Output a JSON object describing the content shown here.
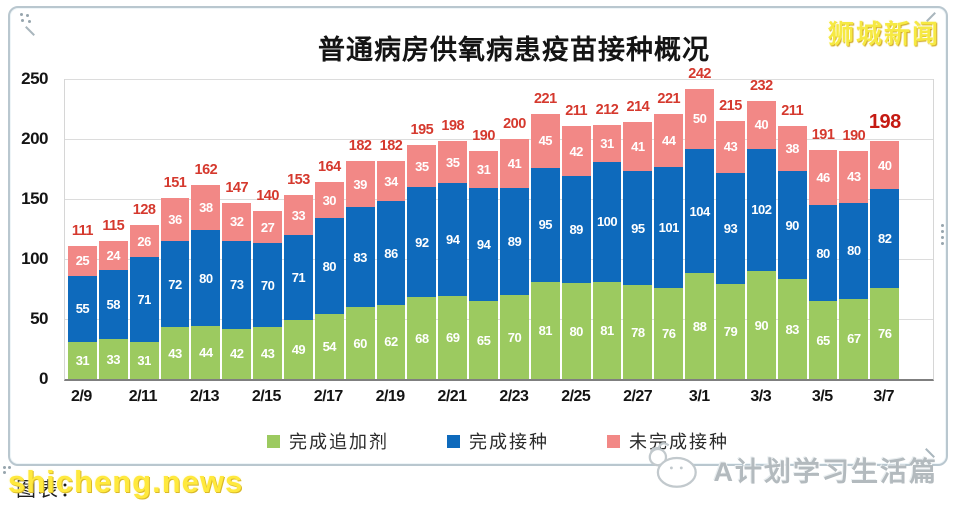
{
  "title": "普通病房供氧病患疫苗接种概况",
  "watermarks": {
    "top_right": "狮城新闻",
    "bottom_left_front": "shicheng.news",
    "bottom_left_back": "图表：",
    "bottom_right": "A计划学习生活篇"
  },
  "colors": {
    "booster_green": "#9cca60",
    "vaccinated_blue": "#0e6abc",
    "unvaccinated_pink": "#f28886",
    "total_red": "#d5392e",
    "total_final_red": "#c51a12",
    "gridline": "#dcdcdc",
    "axis": "#7f7f7f"
  },
  "legend": [
    {
      "label": "完成追加剂",
      "color": "#9cca60"
    },
    {
      "label": "完成接种",
      "color": "#0e6abc"
    },
    {
      "label": "未完成接种",
      "color": "#f28886"
    }
  ],
  "y_axis": {
    "ticks": [
      0,
      50,
      100,
      150,
      200,
      250
    ]
  },
  "chart_data": {
    "type": "bar",
    "stacked": true,
    "title": "普通病房供氧病患疫苗接种概况",
    "categories": [
      "2/9",
      "2/10",
      "2/11",
      "2/12",
      "2/13",
      "2/14",
      "2/15",
      "2/16",
      "2/17",
      "2/18",
      "2/19",
      "2/20",
      "2/21",
      "2/22",
      "2/23",
      "2/24",
      "2/25",
      "2/26",
      "2/27",
      "2/28",
      "3/1",
      "3/2",
      "3/3",
      "3/4",
      "3/5",
      "3/6",
      "3/7"
    ],
    "x_tick_labels": [
      "2/9",
      "2/11",
      "2/13",
      "2/15",
      "2/17",
      "2/19",
      "2/21",
      "2/23",
      "2/25",
      "2/27",
      "3/1",
      "3/3",
      "3/5",
      "3/7"
    ],
    "series": [
      {
        "name": "完成追加剂",
        "key": "booster",
        "color": "#9cca60",
        "values": [
          31,
          33,
          31,
          43,
          44,
          42,
          43,
          49,
          54,
          60,
          62,
          68,
          69,
          65,
          70,
          81,
          80,
          81,
          78,
          76,
          88,
          79,
          90,
          83,
          65,
          67,
          76
        ]
      },
      {
        "name": "完成接种",
        "key": "fully-vaccinated",
        "color": "#0e6abc",
        "values": [
          55,
          58,
          71,
          72,
          80,
          73,
          70,
          71,
          80,
          83,
          86,
          92,
          94,
          94,
          89,
          95,
          89,
          100,
          95,
          101,
          104,
          93,
          102,
          90,
          80,
          80,
          82
        ]
      },
      {
        "name": "未完成接种",
        "key": "not-fully-vaccinated",
        "color": "#f28886",
        "values": [
          25,
          24,
          26,
          36,
          38,
          32,
          27,
          33,
          30,
          39,
          34,
          35,
          35,
          31,
          41,
          45,
          42,
          31,
          41,
          44,
          50,
          43,
          40,
          38,
          46,
          43,
          40
        ]
      }
    ],
    "totals": [
      111,
      115,
      128,
      151,
      162,
      147,
      140,
      153,
      164,
      182,
      182,
      195,
      198,
      190,
      200,
      221,
      211,
      212,
      214,
      221,
      242,
      215,
      232,
      211,
      191,
      190,
      198
    ],
    "ylim": [
      0,
      250
    ],
    "grid": "horizontal",
    "legend_position": "bottom",
    "highlight_last_total": true
  }
}
